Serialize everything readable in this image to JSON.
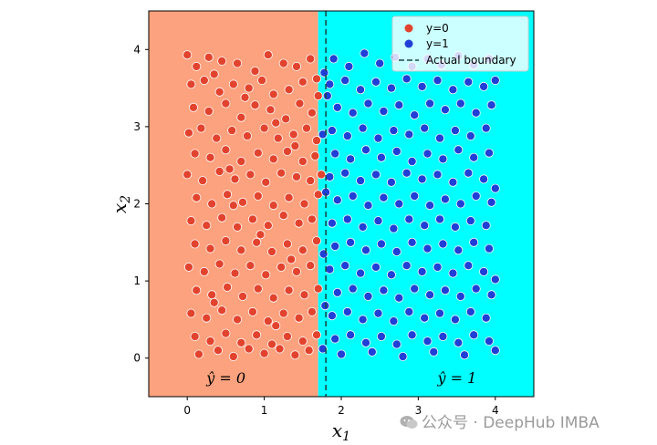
{
  "chart_data": {
    "type": "scatter",
    "xlabel": "x",
    "xlabel_sub": "1",
    "ylabel": "x",
    "ylabel_sub": "2",
    "xlim": [
      -0.5,
      4.5
    ],
    "ylim": [
      -0.5,
      4.5
    ],
    "xticks": [
      0,
      1,
      2,
      3,
      4
    ],
    "yticks": [
      0,
      1,
      2,
      3,
      4
    ],
    "grid": false,
    "legend_position": "top-right",
    "boundary": {
      "name": "Actual boundary",
      "x": 1.8,
      "style": "dashed",
      "color": "#1a4a4a"
    },
    "predicted_boundary_x": 1.7,
    "regions": [
      {
        "label_main": "ŷ",
        "label_rest": " = 0",
        "color": "#fca27e",
        "label_x": 0.25,
        "label_y": -0.25
      },
      {
        "label_main": "ŷ",
        "label_rest": " = 1",
        "color": "#00ffff",
        "label_x": 3.25,
        "label_y": -0.25
      }
    ],
    "series": [
      {
        "name": "y=0",
        "color": "#e2432e",
        "points": [
          [
            0.0,
            3.93
          ],
          [
            0.12,
            3.78
          ],
          [
            0.28,
            3.9
          ],
          [
            0.45,
            3.85
          ],
          [
            0.65,
            3.82
          ],
          [
            0.88,
            3.72
          ],
          [
            1.05,
            3.93
          ],
          [
            1.25,
            3.82
          ],
          [
            1.42,
            3.78
          ],
          [
            1.6,
            3.88
          ],
          [
            0.05,
            3.55
          ],
          [
            0.22,
            3.6
          ],
          [
            0.42,
            3.45
          ],
          [
            0.6,
            3.55
          ],
          [
            0.8,
            3.5
          ],
          [
            0.97,
            3.6
          ],
          [
            1.12,
            3.42
          ],
          [
            1.32,
            3.48
          ],
          [
            1.5,
            3.58
          ],
          [
            1.68,
            3.62
          ],
          [
            0.08,
            3.25
          ],
          [
            0.28,
            3.2
          ],
          [
            0.5,
            3.3
          ],
          [
            0.7,
            3.12
          ],
          [
            0.88,
            3.28
          ],
          [
            1.08,
            3.22
          ],
          [
            1.28,
            3.1
          ],
          [
            1.46,
            3.3
          ],
          [
            1.62,
            3.18
          ],
          [
            1.7,
            3.4
          ],
          [
            0.02,
            2.92
          ],
          [
            0.18,
            2.98
          ],
          [
            0.38,
            2.85
          ],
          [
            0.58,
            2.95
          ],
          [
            0.78,
            2.88
          ],
          [
            1.0,
            2.98
          ],
          [
            1.18,
            2.85
          ],
          [
            1.38,
            2.9
          ],
          [
            1.55,
            2.98
          ],
          [
            1.68,
            2.82
          ],
          [
            0.1,
            2.65
          ],
          [
            0.3,
            2.6
          ],
          [
            0.5,
            2.7
          ],
          [
            0.7,
            2.55
          ],
          [
            0.92,
            2.66
          ],
          [
            1.12,
            2.58
          ],
          [
            1.3,
            2.68
          ],
          [
            1.5,
            2.55
          ],
          [
            1.66,
            2.62
          ],
          [
            0.0,
            2.38
          ],
          [
            0.2,
            2.3
          ],
          [
            0.42,
            2.42
          ],
          [
            0.62,
            2.32
          ],
          [
            0.82,
            2.38
          ],
          [
            1.02,
            2.28
          ],
          [
            1.22,
            2.4
          ],
          [
            1.42,
            2.35
          ],
          [
            1.6,
            2.3
          ],
          [
            1.74,
            2.38
          ],
          [
            0.12,
            2.08
          ],
          [
            0.32,
            2.0
          ],
          [
            0.52,
            2.12
          ],
          [
            0.72,
            2.02
          ],
          [
            0.92,
            2.1
          ],
          [
            1.12,
            1.98
          ],
          [
            1.32,
            2.08
          ],
          [
            1.52,
            2.0
          ],
          [
            1.7,
            2.12
          ],
          [
            0.05,
            1.78
          ],
          [
            0.25,
            1.72
          ],
          [
            0.45,
            1.82
          ],
          [
            0.65,
            1.7
          ],
          [
            0.85,
            1.8
          ],
          [
            1.05,
            1.72
          ],
          [
            1.25,
            1.85
          ],
          [
            1.45,
            1.75
          ],
          [
            1.62,
            1.8
          ],
          [
            0.1,
            1.48
          ],
          [
            0.3,
            1.42
          ],
          [
            0.5,
            1.52
          ],
          [
            0.7,
            1.4
          ],
          [
            0.9,
            1.5
          ],
          [
            1.1,
            1.38
          ],
          [
            1.3,
            1.48
          ],
          [
            1.5,
            1.4
          ],
          [
            1.68,
            1.52
          ],
          [
            0.02,
            1.18
          ],
          [
            0.22,
            1.12
          ],
          [
            0.42,
            1.22
          ],
          [
            0.62,
            1.1
          ],
          [
            0.82,
            1.2
          ],
          [
            1.02,
            1.08
          ],
          [
            1.22,
            1.18
          ],
          [
            1.42,
            1.12
          ],
          [
            1.6,
            1.2
          ],
          [
            0.12,
            0.88
          ],
          [
            0.32,
            0.82
          ],
          [
            0.52,
            0.92
          ],
          [
            0.72,
            0.8
          ],
          [
            0.92,
            0.9
          ],
          [
            1.12,
            0.78
          ],
          [
            1.32,
            0.88
          ],
          [
            1.52,
            0.82
          ],
          [
            1.7,
            0.9
          ],
          [
            0.05,
            0.58
          ],
          [
            0.25,
            0.52
          ],
          [
            0.45,
            0.62
          ],
          [
            0.65,
            0.5
          ],
          [
            0.85,
            0.6
          ],
          [
            1.05,
            0.48
          ],
          [
            1.25,
            0.58
          ],
          [
            1.45,
            0.52
          ],
          [
            1.62,
            0.6
          ],
          [
            0.1,
            0.28
          ],
          [
            0.3,
            0.22
          ],
          [
            0.5,
            0.32
          ],
          [
            0.7,
            0.2
          ],
          [
            0.9,
            0.3
          ],
          [
            1.1,
            0.18
          ],
          [
            1.3,
            0.28
          ],
          [
            1.5,
            0.22
          ],
          [
            1.68,
            0.3
          ],
          [
            0.15,
            0.05
          ],
          [
            0.4,
            0.1
          ],
          [
            0.6,
            0.02
          ],
          [
            0.8,
            0.12
          ],
          [
            1.0,
            0.06
          ],
          [
            1.2,
            0.12
          ],
          [
            1.4,
            0.04
          ],
          [
            1.58,
            0.1
          ],
          [
            0.35,
            3.68
          ],
          [
            0.75,
            3.38
          ],
          [
            1.15,
            3.05
          ],
          [
            0.55,
            2.45
          ],
          [
            0.95,
            1.6
          ],
          [
            1.35,
            1.28
          ],
          [
            0.35,
            0.72
          ],
          [
            1.15,
            0.42
          ],
          [
            0.6,
            1.98
          ],
          [
            1.4,
            2.75
          ]
        ]
      },
      {
        "name": "y=1",
        "color": "#1f3fd6",
        "points": [
          [
            1.9,
            3.88
          ],
          [
            2.1,
            3.78
          ],
          [
            2.3,
            3.95
          ],
          [
            2.5,
            3.82
          ],
          [
            2.7,
            3.9
          ],
          [
            2.92,
            3.78
          ],
          [
            3.12,
            3.88
          ],
          [
            3.3,
            3.8
          ],
          [
            3.52,
            3.92
          ],
          [
            3.72,
            3.8
          ],
          [
            3.92,
            3.88
          ],
          [
            1.85,
            3.55
          ],
          [
            2.05,
            3.6
          ],
          [
            2.25,
            3.48
          ],
          [
            2.45,
            3.58
          ],
          [
            2.65,
            3.5
          ],
          [
            2.85,
            3.62
          ],
          [
            3.05,
            3.52
          ],
          [
            3.25,
            3.6
          ],
          [
            3.45,
            3.48
          ],
          [
            3.65,
            3.58
          ],
          [
            3.85,
            3.52
          ],
          [
            4.0,
            3.6
          ],
          [
            1.95,
            3.25
          ],
          [
            2.15,
            3.18
          ],
          [
            2.35,
            3.3
          ],
          [
            2.55,
            3.2
          ],
          [
            2.75,
            3.28
          ],
          [
            2.95,
            3.15
          ],
          [
            3.15,
            3.3
          ],
          [
            3.35,
            3.22
          ],
          [
            3.55,
            3.3
          ],
          [
            3.75,
            3.18
          ],
          [
            3.95,
            3.28
          ],
          [
            1.88,
            2.95
          ],
          [
            2.08,
            2.88
          ],
          [
            2.28,
            2.98
          ],
          [
            2.48,
            2.85
          ],
          [
            2.68,
            2.95
          ],
          [
            2.88,
            2.9
          ],
          [
            3.08,
            2.98
          ],
          [
            3.28,
            2.85
          ],
          [
            3.48,
            2.95
          ],
          [
            3.68,
            2.88
          ],
          [
            3.88,
            2.98
          ],
          [
            1.92,
            2.65
          ],
          [
            2.12,
            2.58
          ],
          [
            2.32,
            2.7
          ],
          [
            2.52,
            2.6
          ],
          [
            2.72,
            2.68
          ],
          [
            2.92,
            2.55
          ],
          [
            3.12,
            2.65
          ],
          [
            3.32,
            2.58
          ],
          [
            3.52,
            2.7
          ],
          [
            3.72,
            2.6
          ],
          [
            3.92,
            2.66
          ],
          [
            1.85,
            2.35
          ],
          [
            2.05,
            2.4
          ],
          [
            2.25,
            2.3
          ],
          [
            2.45,
            2.38
          ],
          [
            2.65,
            2.28
          ],
          [
            2.85,
            2.4
          ],
          [
            3.05,
            2.32
          ],
          [
            3.25,
            2.38
          ],
          [
            3.45,
            2.28
          ],
          [
            3.65,
            2.4
          ],
          [
            3.85,
            2.32
          ],
          [
            4.0,
            2.2
          ],
          [
            1.95,
            2.05
          ],
          [
            2.15,
            2.1
          ],
          [
            2.35,
            1.98
          ],
          [
            2.55,
            2.08
          ],
          [
            2.75,
            2.0
          ],
          [
            2.95,
            2.1
          ],
          [
            3.15,
            1.98
          ],
          [
            3.35,
            2.06
          ],
          [
            3.55,
            2.0
          ],
          [
            3.75,
            2.1
          ],
          [
            3.95,
            2.02
          ],
          [
            1.88,
            1.75
          ],
          [
            2.08,
            1.8
          ],
          [
            2.28,
            1.7
          ],
          [
            2.48,
            1.78
          ],
          [
            2.68,
            1.68
          ],
          [
            2.88,
            1.8
          ],
          [
            3.08,
            1.72
          ],
          [
            3.28,
            1.8
          ],
          [
            3.48,
            1.7
          ],
          [
            3.68,
            1.78
          ],
          [
            3.88,
            1.72
          ],
          [
            1.92,
            1.45
          ],
          [
            2.12,
            1.5
          ],
          [
            2.32,
            1.4
          ],
          [
            2.52,
            1.48
          ],
          [
            2.72,
            1.38
          ],
          [
            2.92,
            1.5
          ],
          [
            3.12,
            1.42
          ],
          [
            3.32,
            1.48
          ],
          [
            3.52,
            1.4
          ],
          [
            3.72,
            1.5
          ],
          [
            3.92,
            1.42
          ],
          [
            1.85,
            1.15
          ],
          [
            2.05,
            1.2
          ],
          [
            2.25,
            1.1
          ],
          [
            2.45,
            1.18
          ],
          [
            2.65,
            1.08
          ],
          [
            2.85,
            1.2
          ],
          [
            3.05,
            1.12
          ],
          [
            3.25,
            1.18
          ],
          [
            3.45,
            1.1
          ],
          [
            3.65,
            1.2
          ],
          [
            3.85,
            1.12
          ],
          [
            4.0,
            1.02
          ],
          [
            1.95,
            0.85
          ],
          [
            2.15,
            0.9
          ],
          [
            2.35,
            0.8
          ],
          [
            2.55,
            0.88
          ],
          [
            2.75,
            0.78
          ],
          [
            2.95,
            0.9
          ],
          [
            3.15,
            0.82
          ],
          [
            3.35,
            0.88
          ],
          [
            3.55,
            0.8
          ],
          [
            3.75,
            0.9
          ],
          [
            3.95,
            0.82
          ],
          [
            1.88,
            0.55
          ],
          [
            2.08,
            0.6
          ],
          [
            2.28,
            0.5
          ],
          [
            2.48,
            0.58
          ],
          [
            2.68,
            0.48
          ],
          [
            2.88,
            0.6
          ],
          [
            3.08,
            0.52
          ],
          [
            3.28,
            0.58
          ],
          [
            3.48,
            0.5
          ],
          [
            3.68,
            0.6
          ],
          [
            3.88,
            0.52
          ],
          [
            1.92,
            0.25
          ],
          [
            2.12,
            0.3
          ],
          [
            2.32,
            0.2
          ],
          [
            2.52,
            0.28
          ],
          [
            2.72,
            0.18
          ],
          [
            2.92,
            0.3
          ],
          [
            3.12,
            0.22
          ],
          [
            3.32,
            0.28
          ],
          [
            3.52,
            0.2
          ],
          [
            3.72,
            0.3
          ],
          [
            3.92,
            0.22
          ],
          [
            2.0,
            0.05
          ],
          [
            2.4,
            0.08
          ],
          [
            2.8,
            0.02
          ],
          [
            3.2,
            0.08
          ],
          [
            3.6,
            0.04
          ],
          [
            4.0,
            0.1
          ],
          [
            1.78,
            3.7
          ],
          [
            1.76,
            2.9
          ],
          [
            1.8,
            2.15
          ],
          [
            1.77,
            1.35
          ],
          [
            1.79,
            0.68
          ],
          [
            1.76,
            0.12
          ],
          [
            1.82,
            3.4
          ]
        ]
      }
    ]
  },
  "watermark": {
    "text": "公众号 · DeepHub IMBA"
  }
}
